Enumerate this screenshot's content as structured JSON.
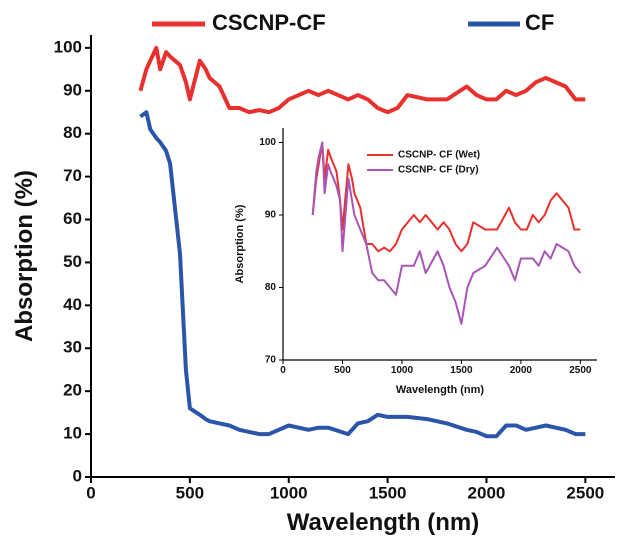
{
  "chart_data": [
    {
      "type": "line",
      "x_label": "Wavelength (nm)",
      "y_label": "Absorption (%)",
      "xlim": [
        0,
        2650
      ],
      "ylim": [
        0,
        103
      ],
      "xticks": [
        0,
        500,
        1000,
        1500,
        2000,
        2500
      ],
      "yticks": [
        0,
        10,
        20,
        30,
        40,
        50,
        60,
        70,
        80,
        90,
        100
      ],
      "x": [
        250,
        280,
        300,
        330,
        350,
        380,
        400,
        450,
        480,
        500,
        550,
        580,
        600,
        650,
        700,
        750,
        800,
        850,
        900,
        950,
        1000,
        1100,
        1150,
        1200,
        1300,
        1350,
        1400,
        1450,
        1500,
        1550,
        1600,
        1700,
        1800,
        1900,
        1950,
        2000,
        2050,
        2100,
        2150,
        2200,
        2250,
        2300,
        2400,
        2450,
        2500
      ],
      "series": [
        {
          "name": "CSCNP-CF",
          "color": "#e8302c",
          "values": [
            90,
            95,
            97,
            100,
            95,
            99,
            98,
            96,
            92,
            88,
            97,
            95,
            93,
            91,
            86,
            86,
            85,
            85.5,
            85,
            86,
            88,
            90,
            89,
            90,
            88,
            89,
            88,
            86,
            85,
            86,
            89,
            88,
            88,
            91,
            89,
            88,
            88,
            90,
            89,
            90,
            92,
            93,
            91,
            88,
            88
          ]
        },
        {
          "name": "CF",
          "color": "#2a55a8",
          "values": [
            84,
            85,
            81,
            79,
            78,
            76,
            73,
            52,
            25,
            16,
            14.5,
            13.5,
            13,
            12.5,
            12,
            11,
            10.5,
            10,
            10,
            11,
            12,
            11,
            11.5,
            11.5,
            10,
            12.5,
            13,
            14.5,
            14,
            14,
            14,
            13.5,
            12.5,
            11,
            10.5,
            9.5,
            9.5,
            12,
            12,
            11,
            11.5,
            12,
            11,
            10,
            10
          ]
        }
      ]
    },
    {
      "type": "line",
      "x_label": "Wavelength (nm)",
      "y_label": "Absorption (%)",
      "xlim": [
        0,
        2640
      ],
      "ylim": [
        70,
        102
      ],
      "xticks": [
        0,
        500,
        1000,
        1500,
        2000,
        2500
      ],
      "yticks": [
        70,
        80,
        90,
        100
      ],
      "x": [
        250,
        280,
        300,
        330,
        350,
        380,
        400,
        450,
        480,
        500,
        550,
        580,
        600,
        650,
        700,
        750,
        800,
        850,
        900,
        950,
        1000,
        1100,
        1150,
        1200,
        1300,
        1350,
        1400,
        1450,
        1500,
        1550,
        1600,
        1700,
        1800,
        1900,
        1950,
        2000,
        2050,
        2100,
        2150,
        2200,
        2250,
        2300,
        2400,
        2450,
        2500
      ],
      "series": [
        {
          "name": "CSCNP- CF (Wet)",
          "color": "#e8302c",
          "values": [
            90,
            95,
            97,
            100,
            95,
            99,
            98,
            96,
            92,
            88,
            97,
            95,
            93,
            91,
            86,
            86,
            85,
            85.5,
            85,
            86,
            88,
            90,
            89,
            90,
            88,
            89,
            88,
            86,
            85,
            86,
            89,
            88,
            88,
            91,
            89,
            88,
            88,
            90,
            89,
            90,
            92,
            93,
            91,
            88,
            88
          ]
        },
        {
          "name": "CSCNP- CF (Dry)",
          "color": "#a855b5",
          "values": [
            90,
            96,
            98,
            100,
            93,
            97,
            96,
            94,
            92,
            85,
            95,
            92,
            90,
            88,
            86,
            82,
            81,
            81,
            80,
            79,
            83,
            83,
            85,
            82,
            85,
            83,
            80,
            78,
            75,
            80,
            82,
            83,
            85.5,
            83,
            81,
            84,
            84,
            84,
            83,
            85,
            84,
            86,
            85,
            83,
            82
          ]
        }
      ]
    }
  ]
}
